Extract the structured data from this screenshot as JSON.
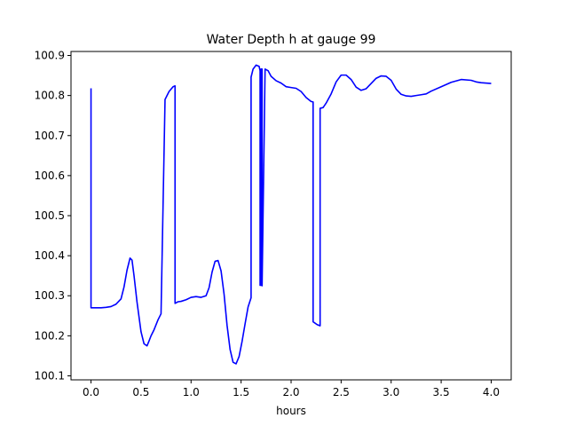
{
  "chart_data": {
    "type": "line",
    "title": "Water Depth h at gauge 99",
    "xlabel": "hours",
    "ylabel": "",
    "xlim": [
      -0.2,
      4.2
    ],
    "ylim": [
      100.09,
      100.91
    ],
    "xticks": [
      0.0,
      0.5,
      1.0,
      1.5,
      2.0,
      2.5,
      3.0,
      3.5,
      4.0
    ],
    "xtick_labels": [
      "0.0",
      "0.5",
      "1.0",
      "1.5",
      "2.0",
      "2.5",
      "3.0",
      "3.5",
      "4.0"
    ],
    "yticks": [
      100.1,
      100.2,
      100.3,
      100.4,
      100.5,
      100.6,
      100.7,
      100.8,
      100.9
    ],
    "ytick_labels": [
      "100.1",
      "100.2",
      "100.3",
      "100.4",
      "100.5",
      "100.6",
      "100.7",
      "100.8",
      "100.9"
    ],
    "grid": false,
    "series": [
      {
        "color": "#0000ff",
        "x": [
          0.0,
          0.0,
          0.05,
          0.1,
          0.15,
          0.2,
          0.25,
          0.3,
          0.33,
          0.36,
          0.39,
          0.41,
          0.43,
          0.46,
          0.5,
          0.53,
          0.56,
          0.58,
          0.6,
          0.63,
          0.67,
          0.7,
          0.74,
          0.74,
          0.78,
          0.82,
          0.84,
          0.84,
          0.87,
          0.9,
          0.95,
          1.0,
          1.05,
          1.1,
          1.15,
          1.18,
          1.21,
          1.24,
          1.27,
          1.3,
          1.33,
          1.36,
          1.39,
          1.42,
          1.45,
          1.48,
          1.51,
          1.54,
          1.57,
          1.6,
          1.6,
          1.62,
          1.65,
          1.68,
          1.69,
          1.69,
          1.7,
          1.7,
          1.71,
          1.71,
          1.74,
          1.77,
          1.8,
          1.85,
          1.9,
          1.95,
          2.0,
          2.05,
          2.1,
          2.15,
          2.2,
          2.22,
          2.22,
          2.26,
          2.29,
          2.29,
          2.32,
          2.35,
          2.4,
          2.45,
          2.5,
          2.55,
          2.6,
          2.65,
          2.7,
          2.75,
          2.8,
          2.85,
          2.9,
          2.95,
          3.0,
          3.05,
          3.1,
          3.15,
          3.2,
          3.25,
          3.3,
          3.35,
          3.4,
          3.5,
          3.6,
          3.7,
          3.8,
          3.85,
          3.9,
          4.0
        ],
        "y": [
          100.818,
          100.27,
          100.27,
          100.27,
          100.271,
          100.273,
          100.279,
          100.292,
          100.322,
          100.364,
          100.394,
          100.389,
          100.35,
          100.284,
          100.21,
          100.18,
          100.175,
          100.187,
          100.2,
          100.215,
          100.24,
          100.255,
          100.79,
          100.79,
          100.81,
          100.822,
          100.824,
          100.281,
          100.285,
          100.286,
          100.29,
          100.296,
          100.298,
          100.296,
          100.3,
          100.32,
          100.359,
          100.386,
          100.388,
          100.362,
          100.304,
          100.226,
          100.166,
          100.134,
          100.13,
          100.148,
          100.186,
          100.23,
          100.272,
          100.295,
          100.846,
          100.866,
          100.876,
          100.873,
          100.862,
          100.326,
          100.326,
          100.866,
          100.866,
          100.325,
          100.866,
          100.862,
          100.848,
          100.837,
          100.831,
          100.822,
          100.82,
          100.818,
          100.81,
          100.795,
          100.785,
          100.784,
          100.235,
          100.228,
          100.225,
          100.768,
          100.77,
          100.781,
          100.804,
          100.834,
          100.851,
          100.851,
          100.84,
          100.821,
          100.813,
          100.817,
          100.83,
          100.843,
          100.849,
          100.848,
          100.838,
          100.816,
          100.803,
          100.799,
          100.798,
          100.8,
          100.802,
          100.804,
          100.811,
          100.822,
          100.833,
          100.84,
          100.838,
          100.834,
          100.832,
          100.83
        ]
      }
    ]
  }
}
